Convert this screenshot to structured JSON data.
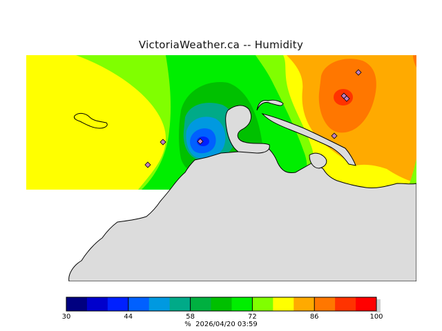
{
  "title": "VictoriaWeather.ca -- Humidity",
  "legend": {
    "min": 30,
    "max": 100,
    "tick_labels": [
      "30",
      "44",
      "58",
      "72",
      "86",
      "100"
    ],
    "colors": [
      "#000080",
      "#0000cc",
      "#0020ff",
      "#0060ff",
      "#0099e0",
      "#00aa88",
      "#00b040",
      "#00c000",
      "#00ee00",
      "#80ff00",
      "#ffff00",
      "#ffaa00",
      "#ff7700",
      "#ff3300",
      "#ff0000"
    ],
    "unit": "%",
    "timestamp": "2026/04/20 03:59"
  },
  "map": {
    "background_color": "#ffff00",
    "land_color": "#dcdcdc",
    "coastline_color": "#000000",
    "station_count": 7
  }
}
